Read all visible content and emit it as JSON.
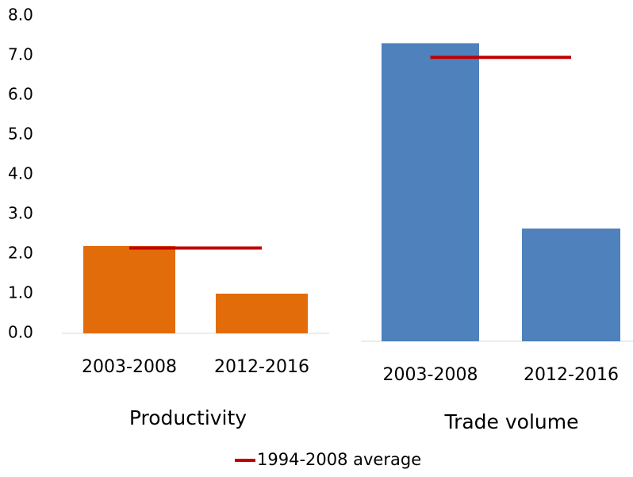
{
  "chart_data": [
    {
      "type": "bar",
      "title": "Productivity",
      "categories": [
        "2003-2008",
        "2012-2016"
      ],
      "values": [
        2.2,
        1.0
      ],
      "color": "#e36c0a",
      "ylim": [
        0,
        8
      ],
      "yticks": [
        {
          "value": 0,
          "label": "0.0"
        },
        {
          "value": 1,
          "label": "1.0"
        },
        {
          "value": 2,
          "label": "2.0"
        },
        {
          "value": 3,
          "label": "3.0"
        },
        {
          "value": 4,
          "label": "4.0"
        },
        {
          "value": 5,
          "label": "5.0"
        },
        {
          "value": 6,
          "label": "6.0"
        },
        {
          "value": 7,
          "label": "7.0"
        },
        {
          "value": 8,
          "label": "8.0"
        }
      ],
      "series": [
        {
          "name": "1994-2008 average",
          "color": "#c00000",
          "values": [
            2.15,
            2.15
          ]
        }
      ]
    },
    {
      "type": "bar",
      "title": "Trade volume",
      "categories": [
        "2003-2008",
        "2012-2016"
      ],
      "values": [
        7.4,
        2.8
      ],
      "color": "#4f81bd",
      "ylim": [
        0,
        8
      ],
      "series": [
        {
          "color": "#c00000",
          "values": [
            7.05,
            7.05
          ]
        }
      ]
    }
  ]
}
